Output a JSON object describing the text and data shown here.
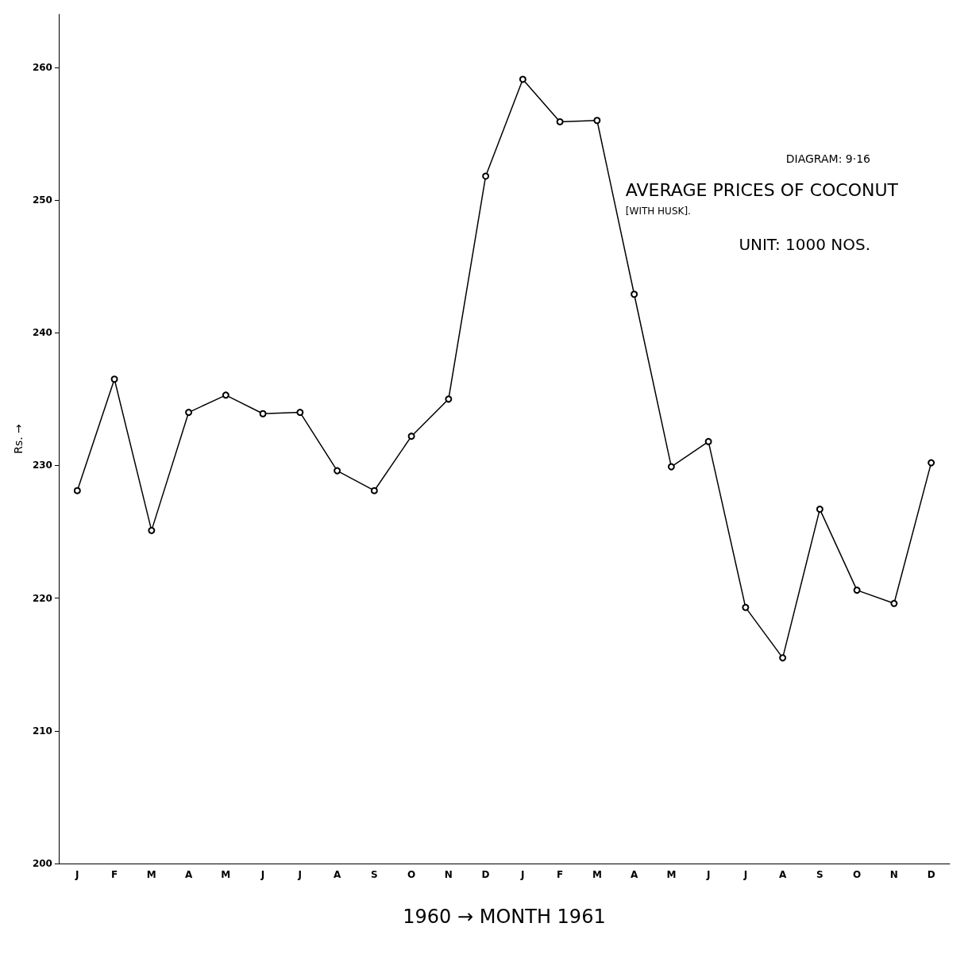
{
  "chart_data": {
    "type": "line",
    "title": "AVERAGE PRICES OF COCONUT",
    "subtitle": "[WITH HUSK].",
    "annotations": [
      "DIAGRAM: 9·16",
      "UNIT: 1000 NOS."
    ],
    "xlabel": "1960 → MONTH 1961",
    "ylabel": "Rs. →",
    "categories": [
      "J",
      "F",
      "M",
      "A",
      "M",
      "J",
      "J",
      "A",
      "S",
      "O",
      "N",
      "D",
      "J",
      "F",
      "M",
      "A",
      "M",
      "J",
      "J",
      "A",
      "S",
      "O",
      "N",
      "D"
    ],
    "series": [
      {
        "color": "#000000",
        "values": [
          228.1,
          236.5,
          225.1,
          234.0,
          235.3,
          233.9,
          234.0,
          229.6,
          228.1,
          232.2,
          235.0,
          251.8,
          259.1,
          255.9,
          256.0,
          242.9,
          229.9,
          231.8,
          219.3,
          215.5,
          226.7,
          220.6,
          219.6,
          230.2
        ]
      }
    ],
    "ylim": [
      200,
      264
    ],
    "yticks": [
      200,
      210,
      220,
      230,
      240,
      250,
      260
    ],
    "grid": false,
    "marker": "circle",
    "line_style": "solid"
  }
}
